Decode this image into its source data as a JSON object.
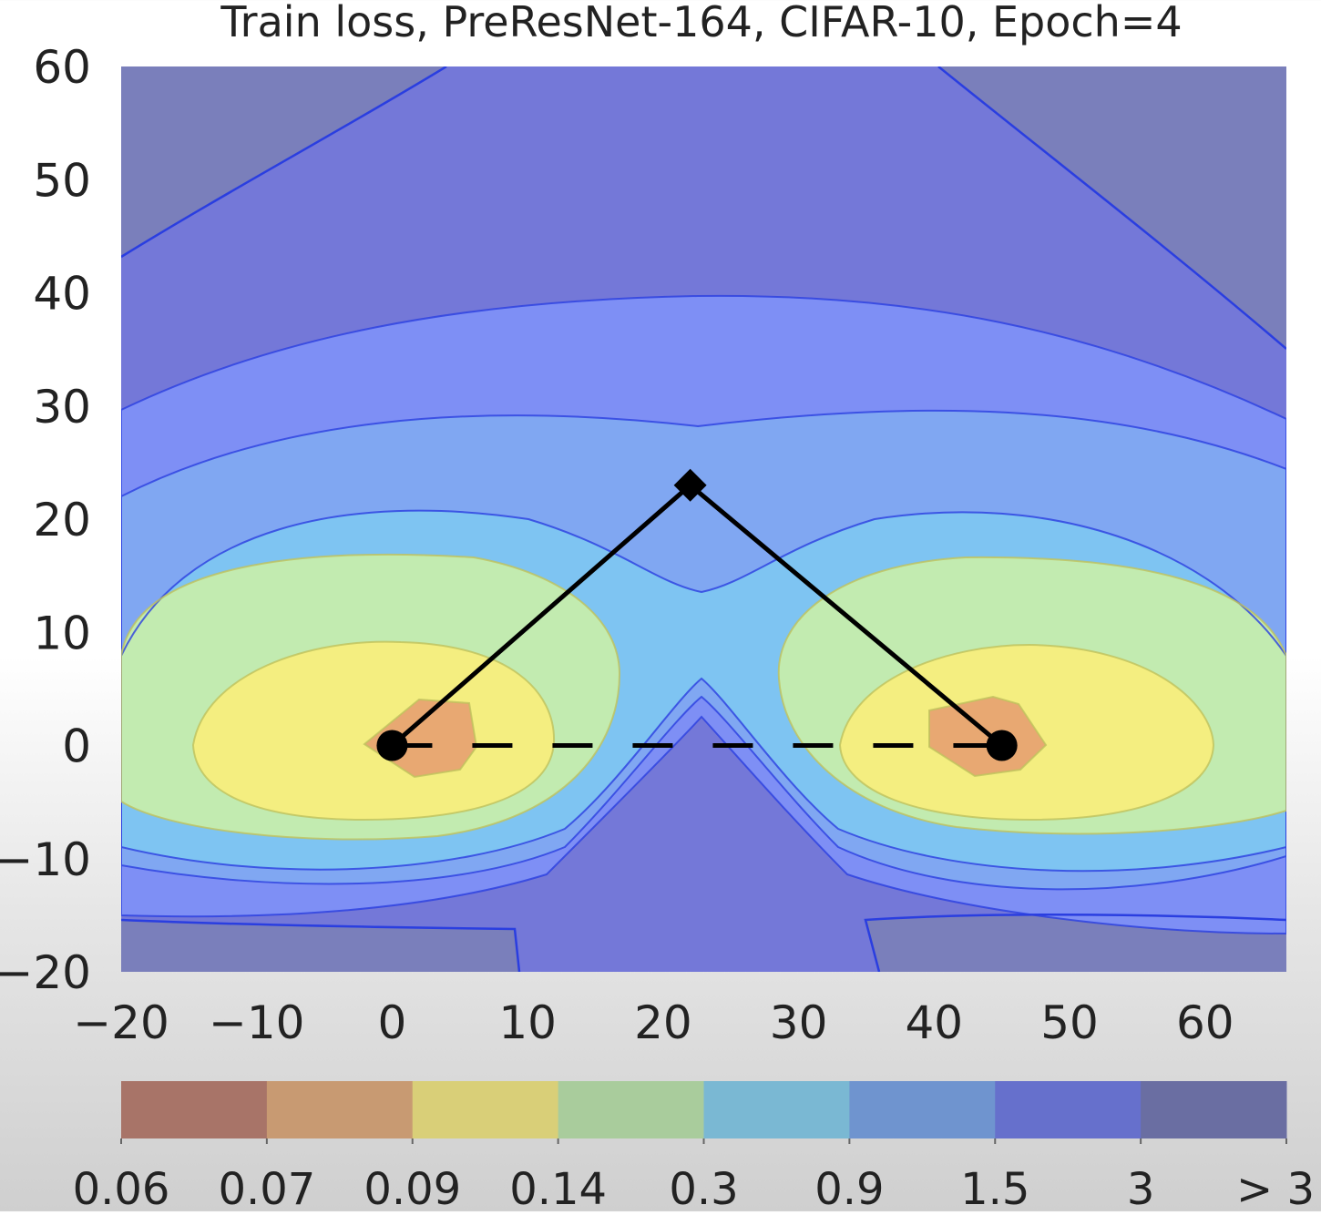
{
  "chart_data": {
    "type": "contour",
    "title": "Train loss, PreResNet-164, CIFAR-10, Epoch=4",
    "xlabel": "",
    "ylabel": "",
    "xlim": [
      -20,
      66
    ],
    "ylim": [
      -20,
      60
    ],
    "x_ticks": [
      -20,
      -10,
      0,
      10,
      20,
      30,
      40,
      50,
      60
    ],
    "y_ticks": [
      -20,
      -10,
      0,
      10,
      20,
      30,
      40,
      50,
      60
    ],
    "colorbar": {
      "levels": [
        "0.06",
        "0.07",
        "0.09",
        "0.14",
        "0.3",
        "0.9",
        "1.5",
        "3",
        "> 3"
      ],
      "colors": [
        "#a87468",
        "#c89a72",
        "#d9cf78",
        "#a9cc9c",
        "#7ab8d3",
        "#6f94cf",
        "#6670cc",
        "#6a6ea2"
      ]
    },
    "region_colors": [
      "#e8a872",
      "#f4ee80",
      "#c2ebb0",
      "#8cdcf6",
      "#7ec4f2",
      "#80a7f2",
      "#7e8ff5",
      "#7478d8",
      "#7a7fbb"
    ],
    "contour_line_color": "#2a3ee0",
    "path": {
      "solid": [
        [
          0,
          0
        ],
        [
          22,
          23
        ],
        [
          45,
          0
        ]
      ],
      "dashed": [
        [
          0,
          0
        ],
        [
          45,
          0
        ]
      ],
      "markers": [
        {
          "x": 0,
          "y": 0,
          "shape": "circle"
        },
        {
          "x": 45,
          "y": 0,
          "shape": "circle"
        },
        {
          "x": 22,
          "y": 23,
          "shape": "diamond"
        }
      ]
    }
  }
}
